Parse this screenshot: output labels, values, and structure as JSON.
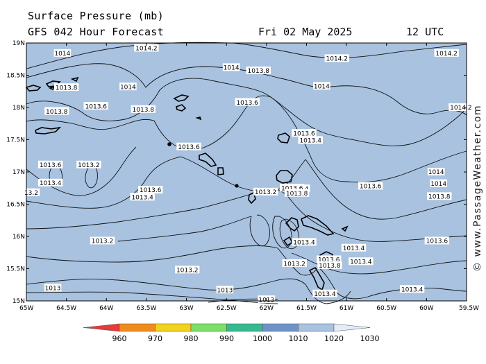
{
  "header": {
    "title": "Surface Pressure (mb)",
    "subtitle": "GFS 042 Hour Forecast",
    "date": "Fri 02 May 2025",
    "time": "12 UTC"
  },
  "watermark": "© www.PassageWeather.com",
  "lat_labels": [
    "19N",
    "18.5N",
    "18N",
    "17.5N",
    "17N",
    "16.5N",
    "16N",
    "15.5N",
    "15N"
  ],
  "lon_labels": [
    "65W",
    "64.5W",
    "64W",
    "63.5W",
    "63W",
    "62.5W",
    "62W",
    "61.5W",
    "61W",
    "60.5W",
    "60W",
    "59.5W"
  ],
  "colorbar": {
    "values": [
      "960",
      "970",
      "980",
      "990",
      "1000",
      "1010",
      "1020",
      "1030"
    ],
    "colors": [
      "#e8393b",
      "#f08c1e",
      "#f2d21c",
      "#7be06a",
      "#36b98e",
      "#6f93c8",
      "#a8c2e0",
      "#e4ecf7"
    ]
  },
  "map": {
    "sea_color": "#a8c2e0",
    "isobar_labels": [
      {
        "text": "1014.2",
        "lon": -63.5,
        "lat": 18.92
      },
      {
        "text": "1014.2",
        "lon": -61.12,
        "lat": 18.76
      },
      {
        "text": "1014.2",
        "lon": -59.75,
        "lat": 18.84
      },
      {
        "text": "1014",
        "lon": -64.55,
        "lat": 18.84
      },
      {
        "text": "1014",
        "lon": -62.44,
        "lat": 18.62
      },
      {
        "text": "1014",
        "lon": -63.73,
        "lat": 18.32
      },
      {
        "text": "1014",
        "lon": -61.31,
        "lat": 18.33
      },
      {
        "text": "1014.2",
        "lon": -59.57,
        "lat": 18.0
      },
      {
        "text": "1013.8",
        "lon": -62.1,
        "lat": 18.57
      },
      {
        "text": "1013.8",
        "lon": -64.5,
        "lat": 18.31
      },
      {
        "text": "1013.8",
        "lon": -63.54,
        "lat": 17.97
      },
      {
        "text": "1013.8",
        "lon": -64.62,
        "lat": 17.94
      },
      {
        "text": "1013.6",
        "lon": -62.24,
        "lat": 18.08
      },
      {
        "text": "1013.6",
        "lon": -64.13,
        "lat": 18.02
      },
      {
        "text": "1013.6",
        "lon": -61.53,
        "lat": 17.6
      },
      {
        "text": "1013.6",
        "lon": -62.97,
        "lat": 17.39
      },
      {
        "text": "1013.6",
        "lon": -64.7,
        "lat": 17.11
      },
      {
        "text": "1013.6",
        "lon": -63.45,
        "lat": 16.72
      },
      {
        "text": "1013.6",
        "lon": -60.7,
        "lat": 16.78
      },
      {
        "text": "1013.4",
        "lon": -61.45,
        "lat": 17.49
      },
      {
        "text": "1013.4",
        "lon": -64.7,
        "lat": 16.83
      },
      {
        "text": "1013.4",
        "lon": -63.55,
        "lat": 16.61
      },
      {
        "text": "1013.4",
        "lon": -61.61,
        "lat": 16.74
      },
      {
        "text": "1013.4",
        "lon": -61.53,
        "lat": 15.91
      },
      {
        "text": "1013.4",
        "lon": -60.91,
        "lat": 15.82
      },
      {
        "text": "1013.4",
        "lon": -60.82,
        "lat": 15.61
      },
      {
        "text": "1013.4",
        "lon": -61.27,
        "lat": 15.11
      },
      {
        "text": "1013.4",
        "lon": -60.18,
        "lat": 15.18
      },
      {
        "text": "1013.2",
        "lon": -64.22,
        "lat": 17.11
      },
      {
        "text": "1013.2",
        "lon": -64.05,
        "lat": 15.93
      },
      {
        "text": "1013.2",
        "lon": -62.99,
        "lat": 15.48
      },
      {
        "text": "1013.2",
        "lon": -62.01,
        "lat": 16.69
      },
      {
        "text": "1013.2",
        "lon": -61.65,
        "lat": 15.58
      },
      {
        "text": "1013",
        "lon": -64.67,
        "lat": 15.2
      },
      {
        "text": "1013",
        "lon": -62.52,
        "lat": 15.17
      },
      {
        "text": "1013",
        "lon": -62.0,
        "lat": 15.02
      },
      {
        "text": "1014",
        "lon": -59.88,
        "lat": 17.0
      },
      {
        "text": "1014",
        "lon": -59.85,
        "lat": 16.82
      },
      {
        "text": "1013.8",
        "lon": -59.84,
        "lat": 16.62
      },
      {
        "text": "1013.6",
        "lon": -59.87,
        "lat": 15.93
      },
      {
        "text": "1013.6",
        "lon": -61.68,
        "lat": 16.75
      },
      {
        "text": "1013.8",
        "lon": -61.62,
        "lat": 16.67
      },
      {
        "text": "1013.6",
        "lon": -61.22,
        "lat": 15.64
      },
      {
        "text": "1013.8",
        "lon": -61.21,
        "lat": 15.55
      },
      {
        "text": "13.2",
        "lon": -64.94,
        "lat": 16.68
      }
    ]
  }
}
